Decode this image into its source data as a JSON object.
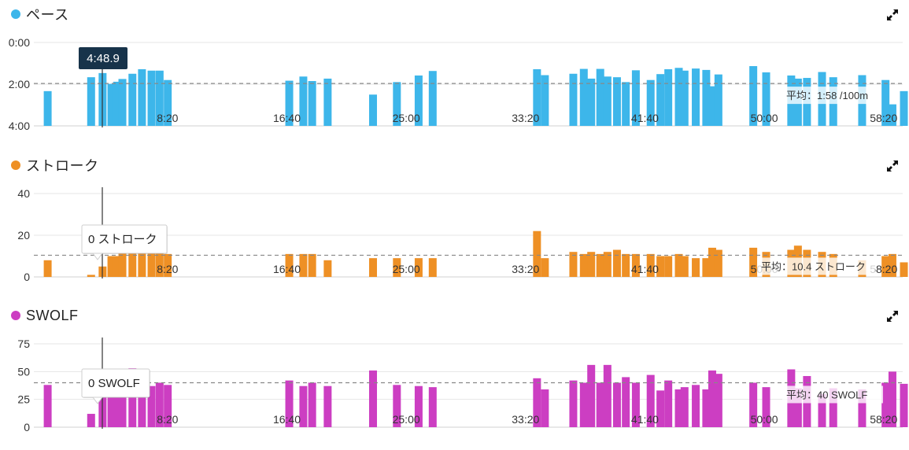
{
  "x_ticks": [
    "8:20",
    "16:40",
    "25:00",
    "33:20",
    "41:40",
    "50:00",
    "58:20"
  ],
  "x_tick_seconds": [
    500,
    1000,
    1500,
    2000,
    2500,
    3000,
    3500
  ],
  "x_range_seconds": [
    -60,
    3580
  ],
  "panels": [
    {
      "id": "pace",
      "title": "ペース",
      "color": "#3db6ea",
      "avg_label": "平均：1:58 /100m",
      "tooltip": "4:48.9",
      "tooltip_style": "dark",
      "chart_data": {
        "type": "bar",
        "metric": "pace_seconds_per_100m",
        "inverted": true,
        "ylim": [
          0,
          240
        ],
        "yticks": [
          {
            "value": 0,
            "label": "0:00"
          },
          {
            "value": 120,
            "label": "2:00"
          },
          {
            "value": 240,
            "label": "4:00"
          }
        ],
        "average": 118,
        "x": [
          -2,
          180,
          228,
          265,
          289,
          311,
          353,
          393,
          433,
          467,
          501,
          1010,
          1069,
          1106,
          1171,
          1361,
          1461,
          1552,
          1611,
          2048,
          2081,
          2200,
          2244,
          2275,
          2313,
          2343,
          2383,
          2420,
          2462,
          2524,
          2565,
          2598,
          2642,
          2666,
          2713,
          2757,
          2782,
          2808,
          2954,
          3008,
          3113,
          3141,
          3179,
          3242,
          3289,
          3410,
          3508,
          3537,
          3585
        ],
        "values": [
          140,
          100,
          88,
          119,
          113,
          105,
          90,
          77,
          81,
          81,
          108,
          110,
          98,
          111,
          104,
          150,
          114,
          95,
          82,
          77,
          94,
          90,
          76,
          104,
          76,
          98,
          100,
          114,
          80,
          108,
          91,
          77,
          73,
          81,
          75,
          79,
          126,
          92,
          68,
          86,
          95,
          104,
          102,
          85,
          100,
          94,
          108,
          178,
          140
        ],
        "x_unit": "seconds"
      }
    },
    {
      "id": "stroke",
      "title": "ストローク",
      "color": "#ee9025",
      "avg_label": "平均：10.4 ストローク",
      "tooltip": "0 ストローク",
      "tooltip_style": "light",
      "chart_data": {
        "type": "bar",
        "metric": "strokes",
        "ylim": [
          0,
          40
        ],
        "yticks": [
          {
            "value": 0,
            "label": "0"
          },
          {
            "value": 20,
            "label": "20"
          },
          {
            "value": 40,
            "label": "40"
          }
        ],
        "average": 10.4,
        "x": [
          -2,
          180,
          228,
          265,
          289,
          311,
          353,
          393,
          433,
          467,
          501,
          1010,
          1069,
          1106,
          1171,
          1361,
          1461,
          1552,
          1611,
          2048,
          2081,
          2200,
          2244,
          2275,
          2313,
          2343,
          2383,
          2420,
          2462,
          2524,
          2565,
          2598,
          2642,
          2666,
          2713,
          2757,
          2782,
          2808,
          2954,
          3008,
          3113,
          3141,
          3179,
          3242,
          3289,
          3410,
          3508,
          3537,
          3585
        ],
        "values": [
          8,
          1,
          5,
          10,
          10,
          12,
          12,
          12,
          12,
          12,
          11,
          11,
          11,
          11,
          8,
          9,
          9,
          9,
          9,
          22,
          9,
          12,
          11,
          12,
          11,
          12,
          13,
          11,
          11,
          11,
          10,
          10,
          11,
          10,
          9,
          9,
          14,
          13,
          14,
          12,
          13,
          15,
          13,
          12,
          11,
          8,
          10,
          11,
          7
        ],
        "x_unit": "seconds"
      }
    },
    {
      "id": "swolf",
      "title": "SWOLF",
      "color": "#cc3ec2",
      "avg_label": "平均：40 SWOLF",
      "tooltip": "0 SWOLF",
      "tooltip_style": "light",
      "chart_data": {
        "type": "bar",
        "metric": "swolf",
        "ylim": [
          0,
          75
        ],
        "yticks": [
          {
            "value": 0,
            "label": "0"
          },
          {
            "value": 25,
            "label": "25"
          },
          {
            "value": 50,
            "label": "50"
          },
          {
            "value": 75,
            "label": "75"
          }
        ],
        "average": 40,
        "x": [
          -2,
          180,
          228,
          265,
          289,
          311,
          353,
          393,
          433,
          467,
          501,
          1010,
          1069,
          1106,
          1171,
          1361,
          1461,
          1552,
          1611,
          2048,
          2081,
          2200,
          2244,
          2275,
          2313,
          2343,
          2383,
          2420,
          2462,
          2524,
          2565,
          2598,
          2642,
          2666,
          2713,
          2757,
          2782,
          2808,
          2954,
          3008,
          3113,
          3141,
          3179,
          3242,
          3289,
          3410,
          3508,
          3537,
          3585
        ],
        "values": [
          38,
          12,
          40,
          45,
          48,
          52,
          53,
          42,
          37,
          40,
          38,
          42,
          37,
          40,
          37,
          51,
          38,
          37,
          36,
          44,
          34,
          42,
          40,
          56,
          40,
          56,
          40,
          45,
          40,
          47,
          33,
          42,
          34,
          36,
          38,
          34,
          51,
          48,
          40,
          36,
          52,
          35,
          46,
          30,
          35,
          34,
          40,
          50,
          39
        ],
        "x_unit": "seconds"
      }
    }
  ]
}
